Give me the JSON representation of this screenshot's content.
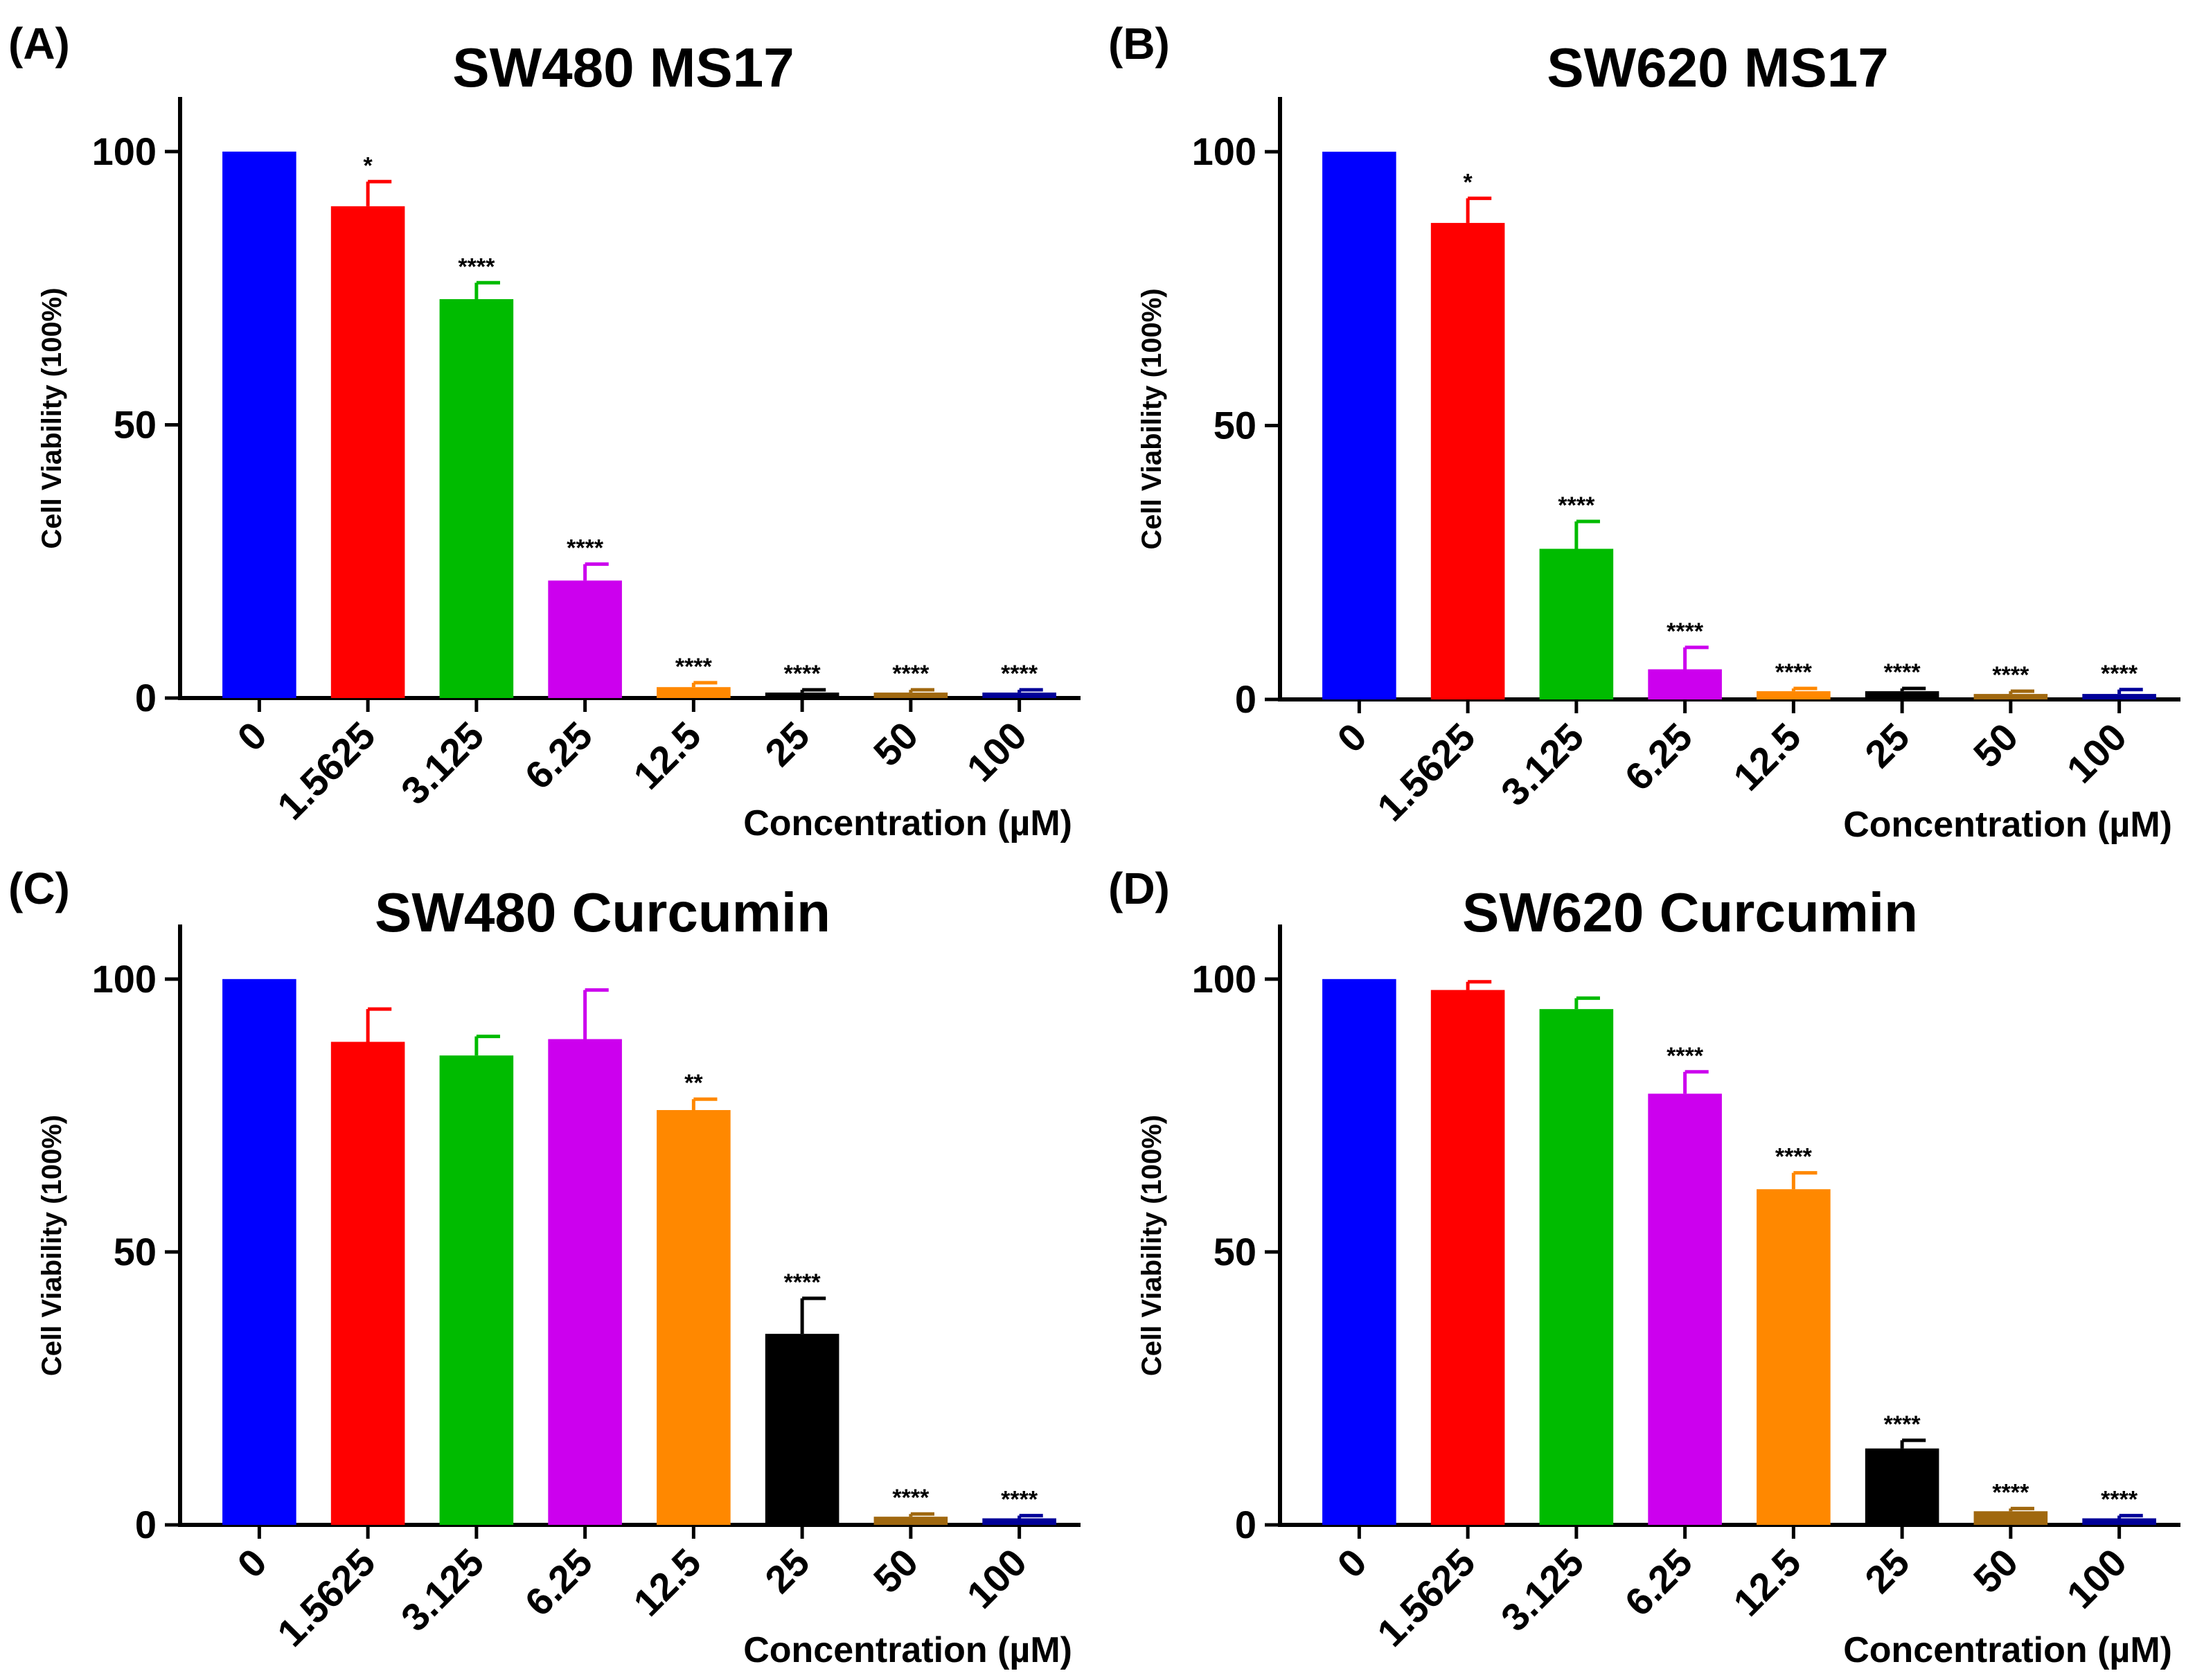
{
  "figure": {
    "panels": [
      {
        "letter": "(A)"
      },
      {
        "letter": "(B)"
      },
      {
        "letter": "(C)"
      },
      {
        "letter": "(D)"
      }
    ]
  },
  "chart_data": [
    {
      "type": "bar",
      "title": "SW480 MS17",
      "xlabel": "Concentration (µM)",
      "ylabel": "Cell Viability (100%)",
      "ylim": [
        0,
        110
      ],
      "yticks": [
        0,
        50,
        100
      ],
      "categories": [
        "0",
        "1.5625",
        "3.125",
        "6.25",
        "12.5",
        "25",
        "50",
        "100"
      ],
      "values": [
        100,
        90,
        73,
        21.5,
        2,
        1,
        1,
        1
      ],
      "errors": [
        0,
        4.5,
        3,
        3,
        0.8,
        0.5,
        0.5,
        0.5
      ],
      "significance": [
        "",
        "*",
        "****",
        "****",
        "****",
        "****",
        "****",
        "****"
      ],
      "colors": [
        "#0000ff",
        "#ff0000",
        "#00bb00",
        "#cc00ee",
        "#ff8800",
        "#000000",
        "#a0680f",
        "#000099"
      ]
    },
    {
      "type": "bar",
      "title": "SW620 MS17",
      "xlabel": "Concentration (µM)",
      "ylabel": "Cell Viability (100%)",
      "ylim": [
        0,
        110
      ],
      "yticks": [
        0,
        50,
        100
      ],
      "categories": [
        "0",
        "1.5625",
        "3.125",
        "6.25",
        "12.5",
        "25",
        "50",
        "100"
      ],
      "values": [
        100,
        87,
        27.5,
        5.5,
        1.5,
        1.5,
        1,
        1
      ],
      "errors": [
        0,
        4.5,
        5,
        4,
        0.5,
        0.5,
        0.5,
        0.8
      ],
      "significance": [
        "",
        "*",
        "****",
        "****",
        "****",
        "****",
        "****",
        "****"
      ],
      "colors": [
        "#0000ff",
        "#ff0000",
        "#00bb00",
        "#cc00ee",
        "#ff8800",
        "#000000",
        "#a0680f",
        "#000099"
      ]
    },
    {
      "type": "bar",
      "title": "SW480 Curcumin",
      "xlabel": "Concentration (µM)",
      "ylabel": "Cell Viability (100%)",
      "ylim": [
        0,
        110
      ],
      "yticks": [
        0,
        50,
        100
      ],
      "categories": [
        "0",
        "1.5625",
        "3.125",
        "6.25",
        "12.5",
        "25",
        "50",
        "100"
      ],
      "values": [
        100,
        88.5,
        86,
        89,
        76,
        35,
        1.5,
        1.2
      ],
      "errors": [
        0,
        6,
        3.5,
        9,
        2,
        6.5,
        0.5,
        0.5
      ],
      "significance": [
        "",
        "",
        "",
        "",
        "**",
        "****",
        "****",
        "****"
      ],
      "colors": [
        "#0000ff",
        "#ff0000",
        "#00bb00",
        "#cc00ee",
        "#ff8800",
        "#000000",
        "#a0680f",
        "#000099"
      ]
    },
    {
      "type": "bar",
      "title": "SW620 Curcumin",
      "xlabel": "Concentration (µM)",
      "ylabel": "Cell Viability (100%)",
      "ylim": [
        0,
        110
      ],
      "yticks": [
        0,
        50,
        100
      ],
      "categories": [
        "0",
        "1.5625",
        "3.125",
        "6.25",
        "12.5",
        "25",
        "50",
        "100"
      ],
      "values": [
        100,
        98,
        94.5,
        79,
        61.5,
        14,
        2.5,
        1.2
      ],
      "errors": [
        0,
        1.5,
        2,
        4,
        3,
        1.5,
        0.5,
        0.5
      ],
      "significance": [
        "",
        "",
        "",
        "****",
        "****",
        "****",
        "****",
        "****"
      ],
      "colors": [
        "#0000ff",
        "#ff0000",
        "#00bb00",
        "#cc00ee",
        "#ff8800",
        "#000000",
        "#a0680f",
        "#000099"
      ]
    }
  ]
}
